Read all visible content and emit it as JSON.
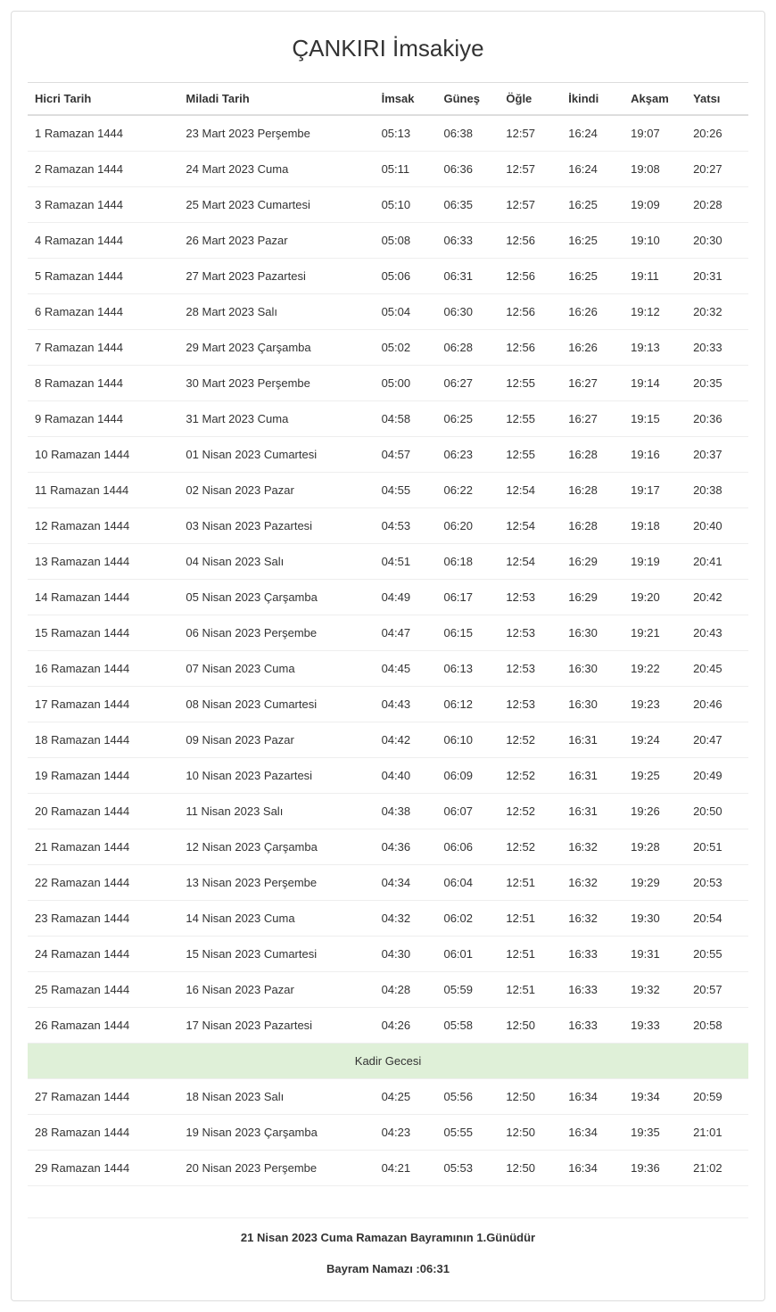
{
  "title": "ÇANKIRI İmsakiye",
  "columns": [
    "Hicri Tarih",
    "Miladi Tarih",
    "İmsak",
    "Güneş",
    "Öğle",
    "İkindi",
    "Akşam",
    "Yatsı"
  ],
  "rows_before": [
    [
      "1 Ramazan 1444",
      "23 Mart 2023 Perşembe",
      "05:13",
      "06:38",
      "12:57",
      "16:24",
      "19:07",
      "20:26"
    ],
    [
      "2 Ramazan 1444",
      "24 Mart 2023 Cuma",
      "05:11",
      "06:36",
      "12:57",
      "16:24",
      "19:08",
      "20:27"
    ],
    [
      "3 Ramazan 1444",
      "25 Mart 2023 Cumartesi",
      "05:10",
      "06:35",
      "12:57",
      "16:25",
      "19:09",
      "20:28"
    ],
    [
      "4 Ramazan 1444",
      "26 Mart 2023 Pazar",
      "05:08",
      "06:33",
      "12:56",
      "16:25",
      "19:10",
      "20:30"
    ],
    [
      "5 Ramazan 1444",
      "27 Mart 2023 Pazartesi",
      "05:06",
      "06:31",
      "12:56",
      "16:25",
      "19:11",
      "20:31"
    ],
    [
      "6 Ramazan 1444",
      "28 Mart 2023 Salı",
      "05:04",
      "06:30",
      "12:56",
      "16:26",
      "19:12",
      "20:32"
    ],
    [
      "7 Ramazan 1444",
      "29 Mart 2023 Çarşamba",
      "05:02",
      "06:28",
      "12:56",
      "16:26",
      "19:13",
      "20:33"
    ],
    [
      "8 Ramazan 1444",
      "30 Mart 2023 Perşembe",
      "05:00",
      "06:27",
      "12:55",
      "16:27",
      "19:14",
      "20:35"
    ],
    [
      "9 Ramazan 1444",
      "31 Mart 2023 Cuma",
      "04:58",
      "06:25",
      "12:55",
      "16:27",
      "19:15",
      "20:36"
    ],
    [
      "10 Ramazan 1444",
      "01 Nisan 2023 Cumartesi",
      "04:57",
      "06:23",
      "12:55",
      "16:28",
      "19:16",
      "20:37"
    ],
    [
      "11 Ramazan 1444",
      "02 Nisan 2023 Pazar",
      "04:55",
      "06:22",
      "12:54",
      "16:28",
      "19:17",
      "20:38"
    ],
    [
      "12 Ramazan 1444",
      "03 Nisan 2023 Pazartesi",
      "04:53",
      "06:20",
      "12:54",
      "16:28",
      "19:18",
      "20:40"
    ],
    [
      "13 Ramazan 1444",
      "04 Nisan 2023 Salı",
      "04:51",
      "06:18",
      "12:54",
      "16:29",
      "19:19",
      "20:41"
    ],
    [
      "14 Ramazan 1444",
      "05 Nisan 2023 Çarşamba",
      "04:49",
      "06:17",
      "12:53",
      "16:29",
      "19:20",
      "20:42"
    ],
    [
      "15 Ramazan 1444",
      "06 Nisan 2023 Perşembe",
      "04:47",
      "06:15",
      "12:53",
      "16:30",
      "19:21",
      "20:43"
    ],
    [
      "16 Ramazan 1444",
      "07 Nisan 2023 Cuma",
      "04:45",
      "06:13",
      "12:53",
      "16:30",
      "19:22",
      "20:45"
    ],
    [
      "17 Ramazan 1444",
      "08 Nisan 2023 Cumartesi",
      "04:43",
      "06:12",
      "12:53",
      "16:30",
      "19:23",
      "20:46"
    ],
    [
      "18 Ramazan 1444",
      "09 Nisan 2023 Pazar",
      "04:42",
      "06:10",
      "12:52",
      "16:31",
      "19:24",
      "20:47"
    ],
    [
      "19 Ramazan 1444",
      "10 Nisan 2023 Pazartesi",
      "04:40",
      "06:09",
      "12:52",
      "16:31",
      "19:25",
      "20:49"
    ],
    [
      "20 Ramazan 1444",
      "11 Nisan 2023 Salı",
      "04:38",
      "06:07",
      "12:52",
      "16:31",
      "19:26",
      "20:50"
    ],
    [
      "21 Ramazan 1444",
      "12 Nisan 2023 Çarşamba",
      "04:36",
      "06:06",
      "12:52",
      "16:32",
      "19:28",
      "20:51"
    ],
    [
      "22 Ramazan 1444",
      "13 Nisan 2023 Perşembe",
      "04:34",
      "06:04",
      "12:51",
      "16:32",
      "19:29",
      "20:53"
    ],
    [
      "23 Ramazan 1444",
      "14 Nisan 2023 Cuma",
      "04:32",
      "06:02",
      "12:51",
      "16:32",
      "19:30",
      "20:54"
    ],
    [
      "24 Ramazan 1444",
      "15 Nisan 2023 Cumartesi",
      "04:30",
      "06:01",
      "12:51",
      "16:33",
      "19:31",
      "20:55"
    ],
    [
      "25 Ramazan 1444",
      "16 Nisan 2023 Pazar",
      "04:28",
      "05:59",
      "12:51",
      "16:33",
      "19:32",
      "20:57"
    ],
    [
      "26 Ramazan 1444",
      "17 Nisan 2023 Pazartesi",
      "04:26",
      "05:58",
      "12:50",
      "16:33",
      "19:33",
      "20:58"
    ]
  ],
  "special_label": "Kadir Gecesi",
  "rows_after": [
    [
      "27 Ramazan 1444",
      "18 Nisan 2023 Salı",
      "04:25",
      "05:56",
      "12:50",
      "16:34",
      "19:34",
      "20:59"
    ],
    [
      "28 Ramazan 1444",
      "19 Nisan 2023 Çarşamba",
      "04:23",
      "05:55",
      "12:50",
      "16:34",
      "19:35",
      "21:01"
    ],
    [
      "29 Ramazan 1444",
      "20 Nisan 2023 Perşembe",
      "04:21",
      "05:53",
      "12:50",
      "16:34",
      "19:36",
      "21:02"
    ]
  ],
  "footer_line1": "21 Nisan 2023 Cuma Ramazan Bayramının 1.Günüdür",
  "footer_line2": "Bayram Namazı :06:31",
  "style": {
    "border_color": "#dddddd",
    "row_border_color": "#eeeeee",
    "special_bg": "#dff0d8",
    "text_color": "#333333",
    "title_fontsize": 26,
    "body_fontsize": 13
  }
}
